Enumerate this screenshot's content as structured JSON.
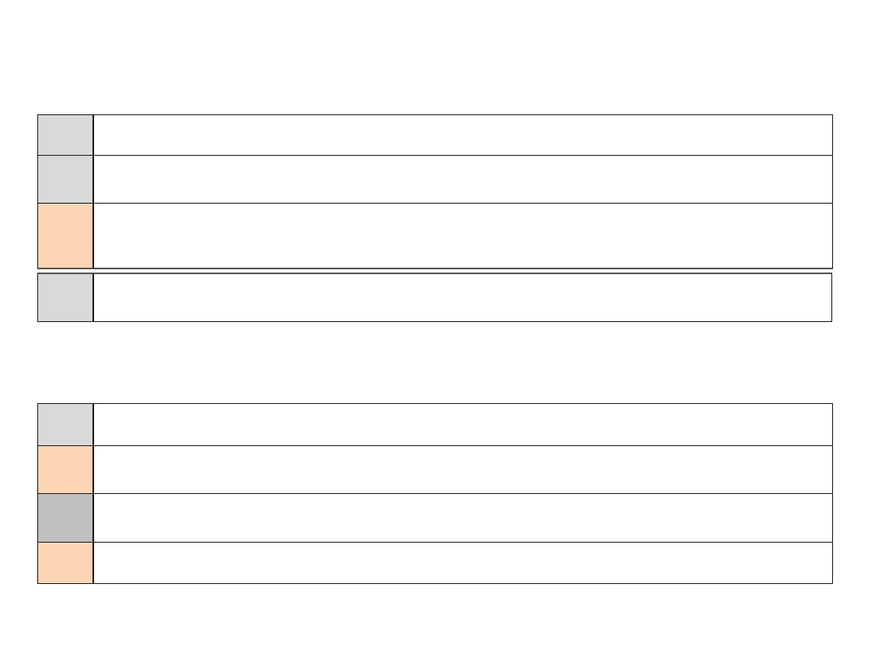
{
  "colors": {
    "light_gray": "#d9d9d9",
    "peach": "#fcd5b5",
    "mid_gray": "#bfbfbf"
  },
  "table1": {
    "rows": [
      {
        "color": "light_gray",
        "text": ""
      },
      {
        "color": "light_gray",
        "text": ""
      },
      {
        "color": "peach",
        "text": ""
      }
    ]
  },
  "box1": {
    "color": "light_gray",
    "text": ""
  },
  "table2": {
    "rows": [
      {
        "color": "light_gray",
        "text": ""
      },
      {
        "color": "peach",
        "text": ""
      },
      {
        "color": "mid_gray",
        "text": ""
      },
      {
        "color": "peach",
        "text": ""
      }
    ]
  }
}
